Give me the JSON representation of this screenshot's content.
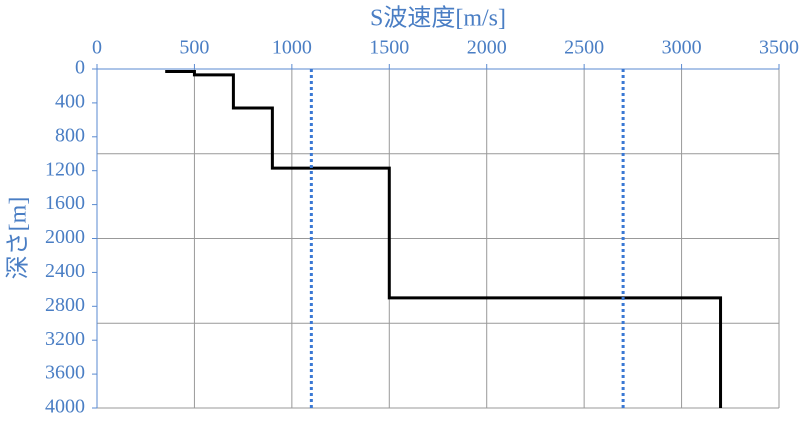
{
  "chart_data": {
    "type": "line",
    "x_label": "S波速度[m/s]",
    "y_label": "深さ[m]",
    "xlim": [
      0,
      3500
    ],
    "xticks": [
      0,
      500,
      1000,
      1500,
      2000,
      2500,
      3000,
      3500
    ],
    "ylim": [
      0,
      4000
    ],
    "yticks": [
      0,
      400,
      800,
      1200,
      1600,
      2000,
      2400,
      2800,
      3200,
      3600,
      4000
    ],
    "y_inverted": true,
    "x_axis_position": "top",
    "x_grid": true,
    "y_gridlines": [
      1000,
      2000,
      3000,
      4000
    ],
    "series": [
      {
        "color": "#000000",
        "dash": "solid",
        "x": [
          350,
          500,
          500,
          700,
          700,
          900,
          900,
          1500,
          1500,
          3200,
          3200
        ],
        "y": [
          30,
          30,
          70,
          70,
          460,
          460,
          1170,
          1170,
          2700,
          2700,
          4000
        ]
      },
      {
        "color": "#3a78d4",
        "dash": "dotted",
        "x": [
          1100,
          1100
        ],
        "y": [
          0,
          4000
        ]
      },
      {
        "color": "#3a78d4",
        "dash": "dotted",
        "x": [
          2700,
          2700
        ],
        "y": [
          0,
          4000
        ]
      }
    ]
  }
}
